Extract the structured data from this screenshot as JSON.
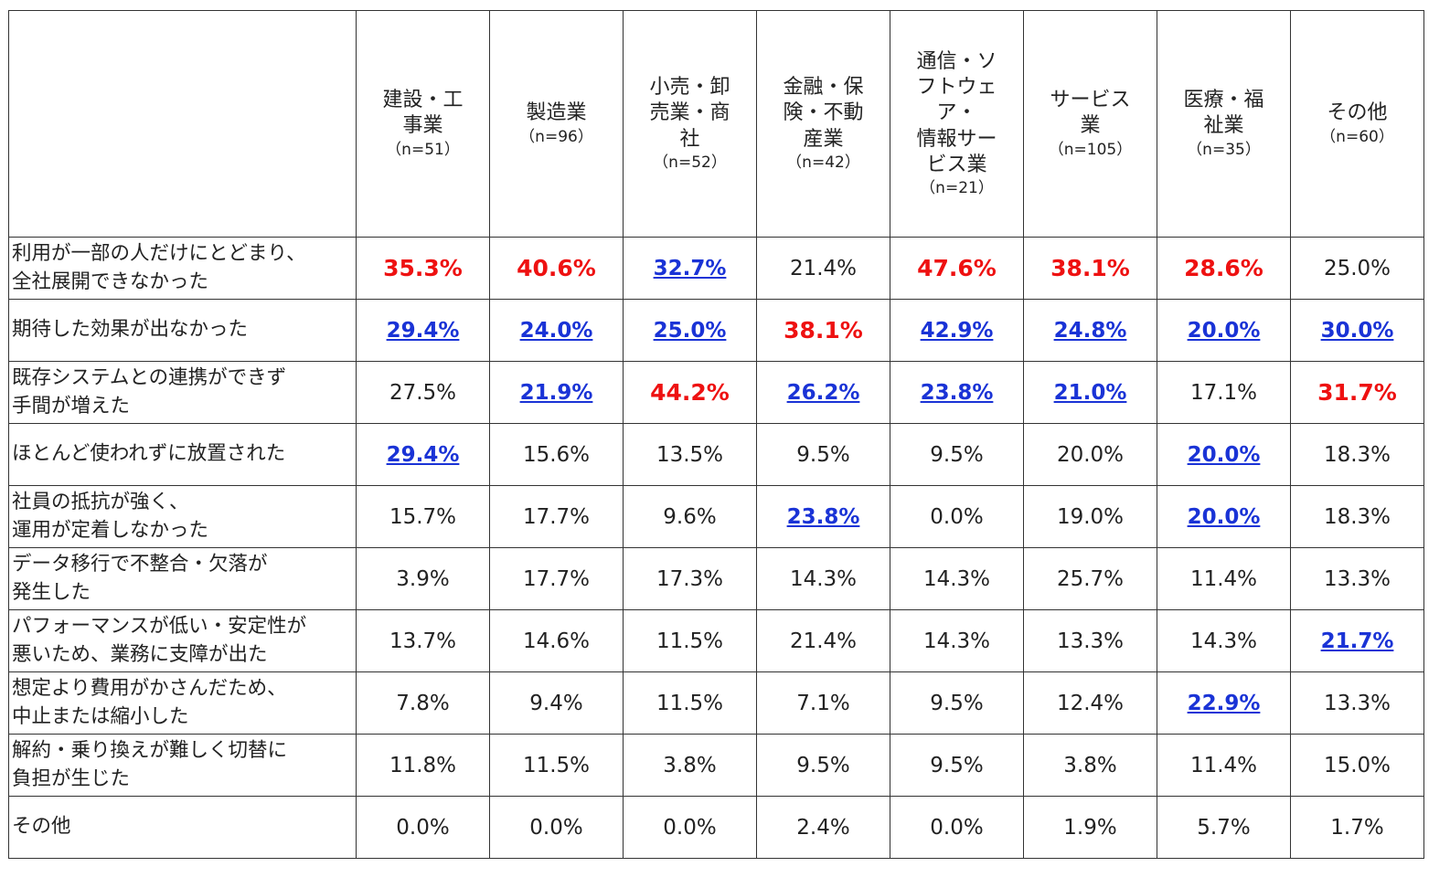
{
  "chart_data": {
    "type": "table",
    "colors": {
      "high": "#ee1111",
      "second": "#1a33d6",
      "normal": "#222222"
    },
    "columns": [
      {
        "label_lines": [
          "建設・工",
          "事業"
        ],
        "n": "（n=51）"
      },
      {
        "label_lines": [
          "製造業"
        ],
        "n": "（n=96）"
      },
      {
        "label_lines": [
          "小売・卸",
          "売業・商",
          "社"
        ],
        "n": "（n=52）"
      },
      {
        "label_lines": [
          "金融・保",
          "険・不動",
          "産業"
        ],
        "n": "（n=42）"
      },
      {
        "label_lines": [
          "通信・ソ",
          "フトウェ",
          "ア・",
          "情報サー",
          "ビス業"
        ],
        "n": "（n=21）"
      },
      {
        "label_lines": [
          "サービス",
          "業"
        ],
        "n": "（n=105）"
      },
      {
        "label_lines": [
          "医療・福",
          "祉業"
        ],
        "n": "（n=35）"
      },
      {
        "label_lines": [
          "その他"
        ],
        "n": "（n=60）"
      }
    ],
    "rows": [
      {
        "label_lines": [
          "利用が一部の人だけにとどまり、",
          "全社展開できなかった"
        ],
        "values": [
          "35.3%",
          "40.6%",
          "32.7%",
          "21.4%",
          "47.6%",
          "38.1%",
          "28.6%",
          "25.0%"
        ],
        "styles": [
          "hi",
          "hi",
          "lo",
          "",
          "hi",
          "hi",
          "hi",
          ""
        ]
      },
      {
        "label_lines": [
          "期待した効果が出なかった"
        ],
        "values": [
          "29.4%",
          "24.0%",
          "25.0%",
          "38.1%",
          "42.9%",
          "24.8%",
          "20.0%",
          "30.0%"
        ],
        "styles": [
          "lo",
          "lo",
          "lo",
          "hi",
          "lo",
          "lo",
          "lo",
          "lo"
        ]
      },
      {
        "label_lines": [
          "既存システムとの連携ができず",
          "手間が増えた"
        ],
        "values": [
          "27.5%",
          "21.9%",
          "44.2%",
          "26.2%",
          "23.8%",
          "21.0%",
          "17.1%",
          "31.7%"
        ],
        "styles": [
          "",
          "lo",
          "hi",
          "lo",
          "lo",
          "lo",
          "",
          "hi"
        ]
      },
      {
        "label_lines": [
          "ほとんど使われずに放置された"
        ],
        "values": [
          "29.4%",
          "15.6%",
          "13.5%",
          "9.5%",
          "9.5%",
          "20.0%",
          "20.0%",
          "18.3%"
        ],
        "styles": [
          "lo",
          "",
          "",
          "",
          "",
          "",
          "lo",
          ""
        ]
      },
      {
        "label_lines": [
          "社員の抵抗が強く、",
          "運用が定着しなかった"
        ],
        "values": [
          "15.7%",
          "17.7%",
          "9.6%",
          "23.8%",
          "0.0%",
          "19.0%",
          "20.0%",
          "18.3%"
        ],
        "styles": [
          "",
          "",
          "",
          "lo",
          "",
          "",
          "lo",
          ""
        ]
      },
      {
        "label_lines": [
          "データ移行で不整合・欠落が",
          "発生した"
        ],
        "values": [
          "3.9%",
          "17.7%",
          "17.3%",
          "14.3%",
          "14.3%",
          "25.7%",
          "11.4%",
          "13.3%"
        ],
        "styles": [
          "",
          "",
          "",
          "",
          "",
          "",
          "",
          ""
        ]
      },
      {
        "label_lines": [
          "パフォーマンスが低い・安定性が",
          "悪いため、業務に支障が出た"
        ],
        "values": [
          "13.7%",
          "14.6%",
          "11.5%",
          "21.4%",
          "14.3%",
          "13.3%",
          "14.3%",
          "21.7%"
        ],
        "styles": [
          "",
          "",
          "",
          "",
          "",
          "",
          "",
          "lo"
        ]
      },
      {
        "label_lines": [
          "想定より費用がかさんだため、",
          "中止または縮小した"
        ],
        "values": [
          "7.8%",
          "9.4%",
          "11.5%",
          "7.1%",
          "9.5%",
          "12.4%",
          "22.9%",
          "13.3%"
        ],
        "styles": [
          "",
          "",
          "",
          "",
          "",
          "",
          "lo",
          ""
        ]
      },
      {
        "label_lines": [
          "解約・乗り換えが難しく切替に",
          "負担が生じた"
        ],
        "values": [
          "11.8%",
          "11.5%",
          "3.8%",
          "9.5%",
          "9.5%",
          "3.8%",
          "11.4%",
          "15.0%"
        ],
        "styles": [
          "",
          "",
          "",
          "",
          "",
          "",
          "",
          ""
        ]
      },
      {
        "label_lines": [
          "その他"
        ],
        "values": [
          "0.0%",
          "0.0%",
          "0.0%",
          "2.4%",
          "0.0%",
          "1.9%",
          "5.7%",
          "1.7%"
        ],
        "styles": [
          "",
          "",
          "",
          "",
          "",
          "",
          "",
          ""
        ]
      }
    ]
  }
}
